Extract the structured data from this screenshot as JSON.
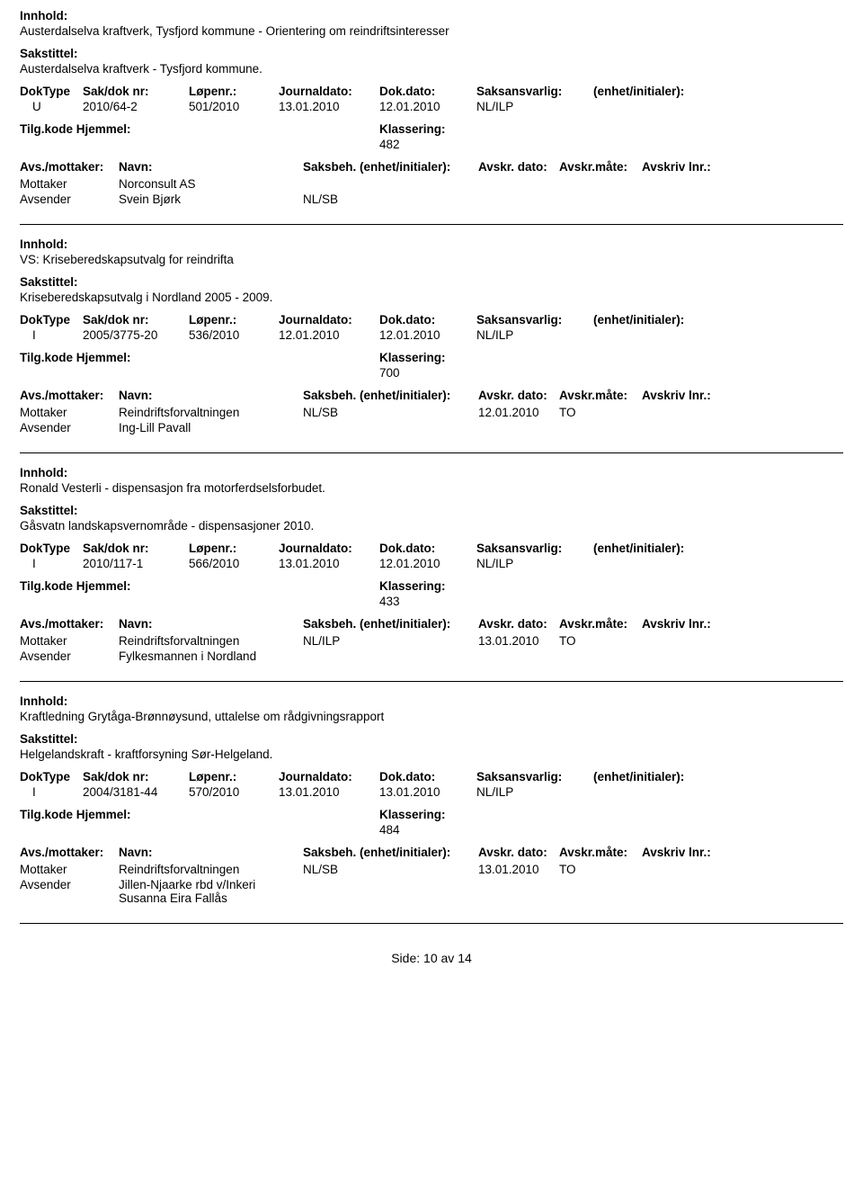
{
  "labels": {
    "innhold": "Innhold:",
    "sakstittel": "Sakstittel:",
    "doktype": "DokType",
    "sakdok": "Sak/dok nr:",
    "lopenr": "Løpenr.:",
    "journaldato": "Journaldato:",
    "dokdato": "Dok.dato:",
    "saksansvarlig": "Saksansvarlig:",
    "enhet": "(enhet/initialer):",
    "tilgkode": "Tilg.kode",
    "hjemmel": "Hjemmel:",
    "klassering": "Klassering:",
    "avsmottaker": "Avs./mottaker:",
    "navn": "Navn:",
    "saksbeh": "Saksbeh.",
    "saksbeh_enhet": "(enhet/initialer):",
    "avskrdato": "Avskr. dato:",
    "avskrmate": "Avskr.måte:",
    "avskrivlnr": "Avskriv lnr.:",
    "mottaker": "Mottaker",
    "avsender": "Avsender",
    "side": "Side:",
    "av": "av"
  },
  "records": [
    {
      "innhold": "Austerdalselva kraftverk, Tysfjord kommune - Orientering om reindriftsinteresser",
      "sakstittel": "Austerdalselva kraftverk - Tysfjord kommune.",
      "doktype": "U",
      "sakdok": "2010/64-2",
      "lopenr": "501/2010",
      "journaldato": "13.01.2010",
      "dokdato": "12.01.2010",
      "saksansvarlig": "NL/ILP",
      "klassering": "482",
      "parties": [
        {
          "role": "Mottaker",
          "name": "Norconsult AS",
          "saksbeh": "",
          "avskrdato": "",
          "avskrmate": ""
        },
        {
          "role": "Avsender",
          "name": "Svein Bjørk",
          "saksbeh": "NL/SB",
          "avskrdato": "",
          "avskrmate": ""
        }
      ]
    },
    {
      "innhold": "VS: Kriseberedskapsutvalg for reindrifta",
      "sakstittel": "Kriseberedskapsutvalg i Nordland 2005 - 2009.",
      "doktype": "I",
      "sakdok": "2005/3775-20",
      "lopenr": "536/2010",
      "journaldato": "12.01.2010",
      "dokdato": "12.01.2010",
      "saksansvarlig": "NL/ILP",
      "klassering": "700",
      "parties": [
        {
          "role": "Mottaker",
          "name": "Reindriftsforvaltningen",
          "saksbeh": "NL/SB",
          "avskrdato": "12.01.2010",
          "avskrmate": "TO"
        },
        {
          "role": "Avsender",
          "name": "Ing-Lill Pavall",
          "saksbeh": "",
          "avskrdato": "",
          "avskrmate": ""
        }
      ]
    },
    {
      "innhold": "Ronald Vesterli - dispensasjon fra motorferdselsforbudet.",
      "sakstittel": "Gåsvatn landskapsvernområde - dispensasjoner 2010.",
      "doktype": "I",
      "sakdok": "2010/117-1",
      "lopenr": "566/2010",
      "journaldato": "13.01.2010",
      "dokdato": "12.01.2010",
      "saksansvarlig": "NL/ILP",
      "klassering": "433",
      "parties": [
        {
          "role": "Mottaker",
          "name": "Reindriftsforvaltningen",
          "saksbeh": "NL/ILP",
          "avskrdato": "13.01.2010",
          "avskrmate": "TO"
        },
        {
          "role": "Avsender",
          "name": "Fylkesmannen i Nordland",
          "saksbeh": "",
          "avskrdato": "",
          "avskrmate": ""
        }
      ]
    },
    {
      "innhold": "Kraftledning Grytåga-Brønnøysund, uttalelse om rådgivningsrapport",
      "sakstittel": "Helgelandskraft - kraftforsyning Sør-Helgeland.",
      "doktype": "I",
      "sakdok": "2004/3181-44",
      "lopenr": "570/2010",
      "journaldato": "13.01.2010",
      "dokdato": "13.01.2010",
      "saksansvarlig": "NL/ILP",
      "klassering": "484",
      "parties": [
        {
          "role": "Mottaker",
          "name": "Reindriftsforvaltningen",
          "saksbeh": "NL/SB",
          "avskrdato": "13.01.2010",
          "avskrmate": "TO"
        },
        {
          "role": "Avsender",
          "name": "Jillen-Njaarke rbd v/Inkeri Susanna Eira Fallås",
          "saksbeh": "",
          "avskrdato": "",
          "avskrmate": ""
        }
      ]
    }
  ],
  "footer": {
    "page": "10",
    "total": "14"
  }
}
